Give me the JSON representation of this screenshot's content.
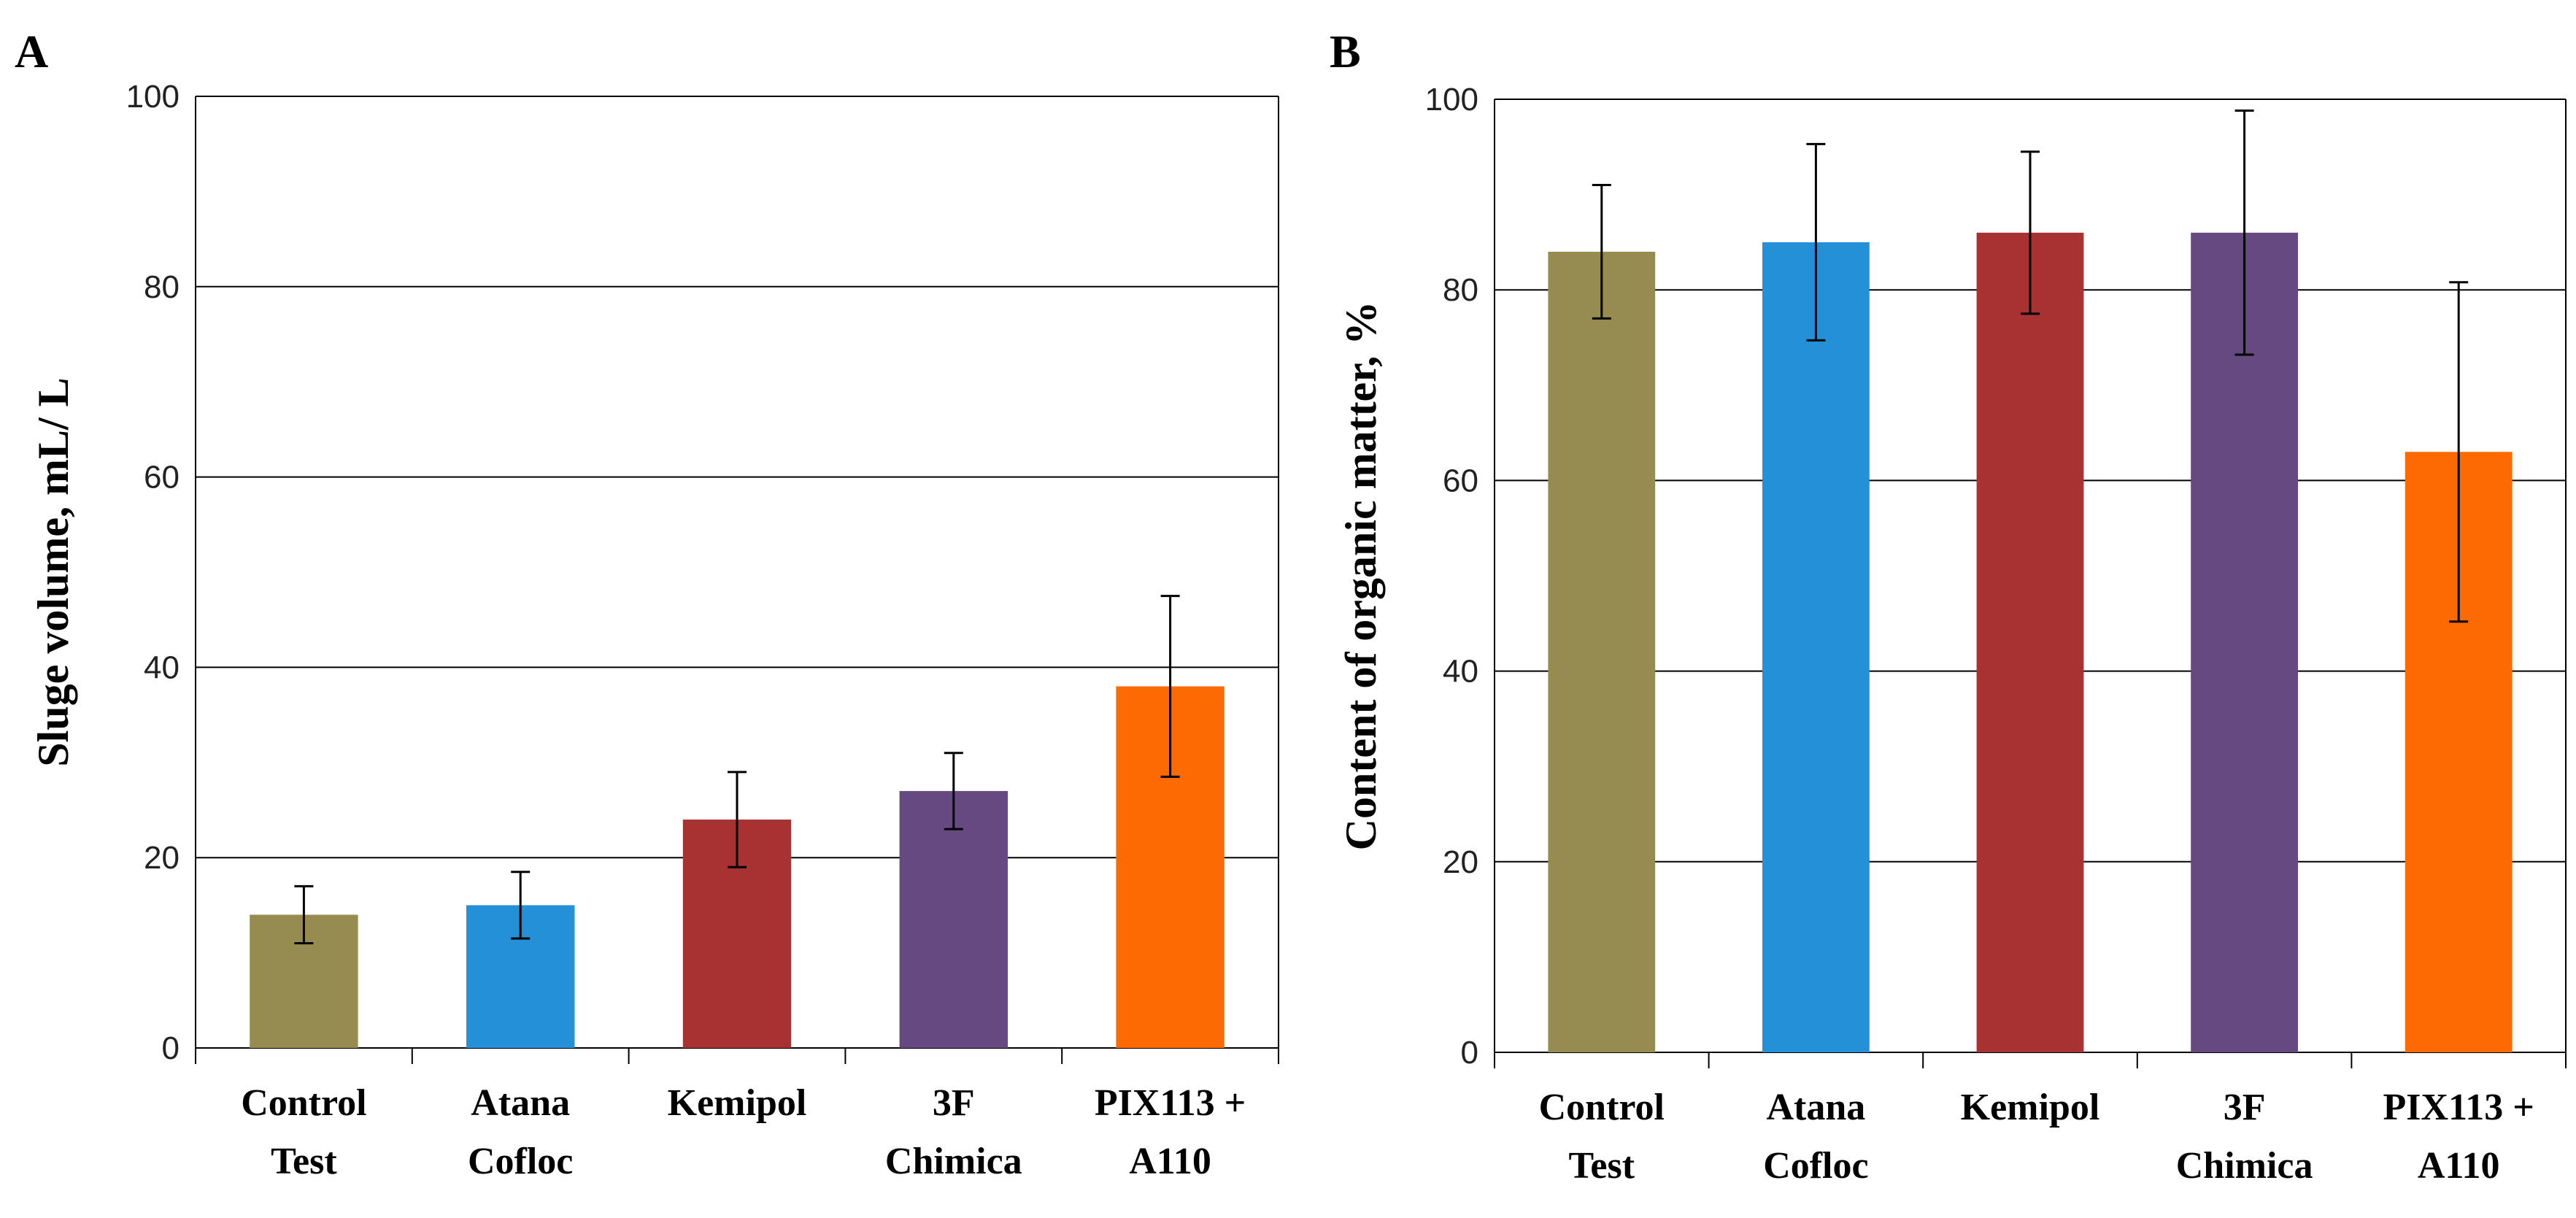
{
  "chart_data": [
    {
      "panel": "A",
      "type": "bar",
      "ylabel": "Sluge volume, mL/ L",
      "ylim": [
        0,
        100
      ],
      "yticks": [
        "0",
        "20",
        "40",
        "60",
        "80",
        "100"
      ],
      "categories": [
        [
          "Control",
          "Test"
        ],
        [
          "Atana",
          "Cofloc"
        ],
        [
          "Kemipol"
        ],
        [
          "3F",
          "Chimica"
        ],
        [
          "PIX113 +",
          "A110"
        ]
      ],
      "values": [
        14,
        15,
        24,
        27,
        38
      ],
      "errors": [
        3,
        3.5,
        5,
        4,
        9.5
      ],
      "colors": [
        "#968c4f",
        "#2490d8",
        "#a83232",
        "#674982",
        "#fd6a02"
      ]
    },
    {
      "panel": "B",
      "type": "bar",
      "ylabel": "Content of organic matter, %",
      "ylim": [
        0,
        100
      ],
      "yticks": [
        "0",
        "20",
        "40",
        "60",
        "80",
        "100"
      ],
      "categories": [
        [
          "Control",
          "Test"
        ],
        [
          "Atana",
          "Cofloc"
        ],
        [
          "Kemipol"
        ],
        [
          "3F",
          "Chimica"
        ],
        [
          "PIX113 +",
          "A110"
        ]
      ],
      "values": [
        84,
        85,
        86,
        86,
        63
      ],
      "errors": [
        7,
        10.3,
        8.5,
        12.8,
        17.8
      ],
      "colors": [
        "#968c4f",
        "#2490d8",
        "#a83232",
        "#674982",
        "#fd6a02"
      ]
    }
  ]
}
